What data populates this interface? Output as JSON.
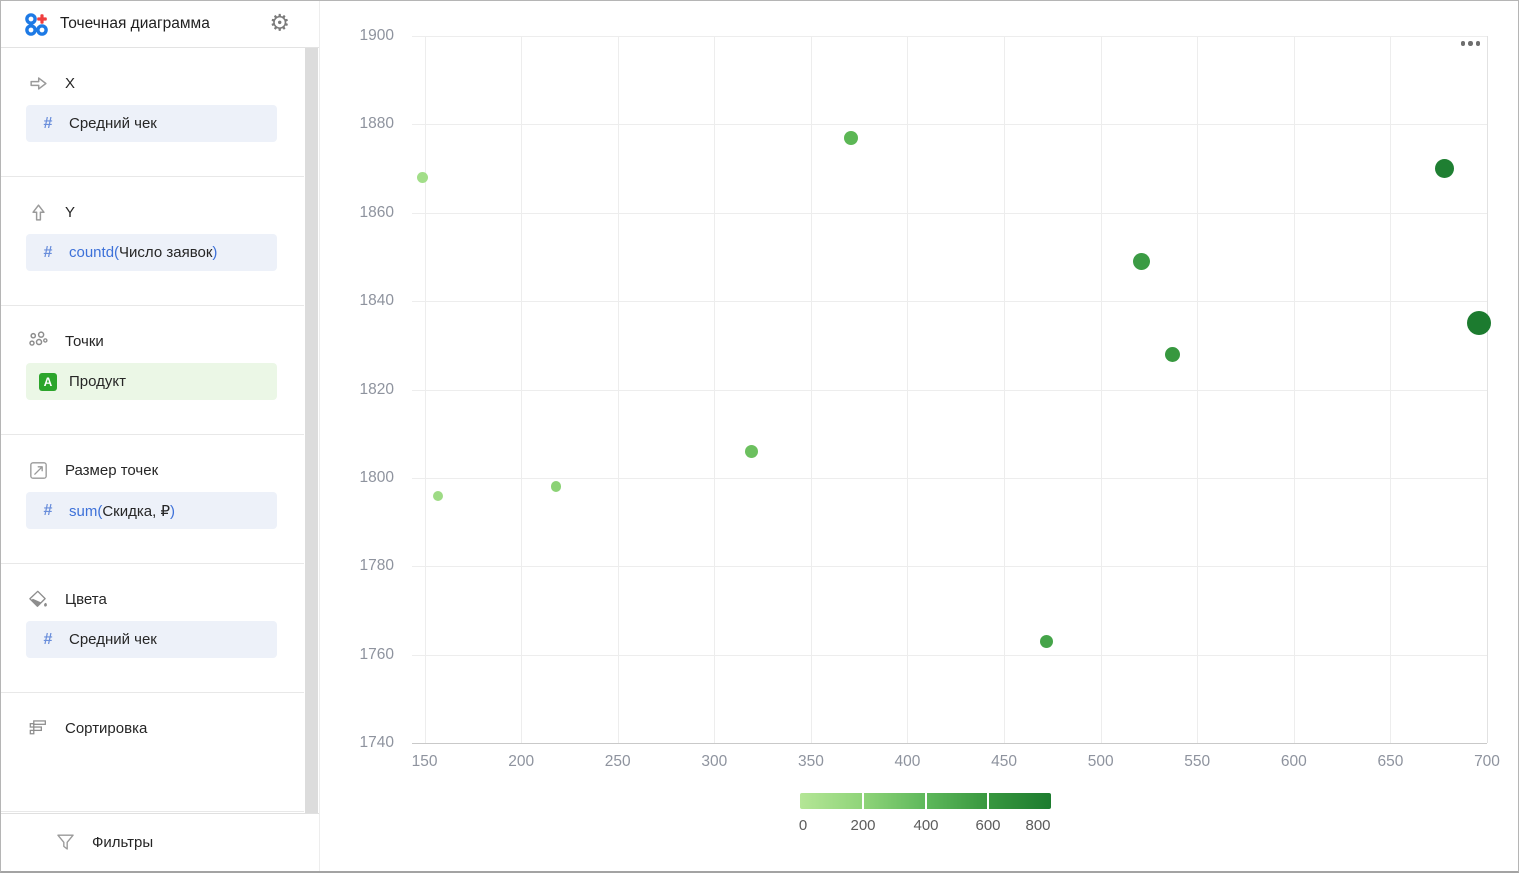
{
  "sidebar": {
    "title": "Точечная диаграмма",
    "gear_icon": "gear-icon",
    "logo_icon": "scatter-chart-logo-icon",
    "sections": [
      {
        "key": "x",
        "label": "X",
        "icon": "arrow-right-icon",
        "field": {
          "style": "blue",
          "icon": "hash-icon",
          "prefix": "",
          "name": "Средний чек",
          "suffix": ""
        }
      },
      {
        "key": "y",
        "label": "Y",
        "icon": "arrow-up-icon",
        "field": {
          "style": "blue",
          "icon": "hash-icon",
          "prefix": "countd(",
          "name": "Число заявок",
          "suffix": ")"
        }
      },
      {
        "key": "points",
        "label": "Точки",
        "icon": "dots-icon",
        "field": {
          "style": "green",
          "icon": "letter-a-icon",
          "prefix": "",
          "name": "Продукт",
          "suffix": ""
        }
      },
      {
        "key": "point-size",
        "label": "Размер точек",
        "icon": "resize-icon",
        "field": {
          "style": "blue",
          "icon": "hash-icon",
          "prefix": "sum(",
          "name": "Скидка, ₽",
          "suffix": ")"
        }
      },
      {
        "key": "colors",
        "label": "Цвета",
        "icon": "paint-bucket-icon",
        "field": {
          "style": "blue",
          "icon": "hash-icon",
          "prefix": "",
          "name": "Средний чек",
          "suffix": ""
        }
      },
      {
        "key": "sorting",
        "label": "Сортировка",
        "icon": "sort-icon",
        "field": null
      },
      {
        "key": "filters",
        "label": "Фильтры",
        "icon": "funnel-icon",
        "field": null,
        "footer": true
      }
    ]
  },
  "chart": {
    "more_menu_icon": "ellipsis-icon"
  },
  "chart_data": {
    "type": "scatter",
    "x_field": "Средний чек",
    "y_field": "countd(Число заявок)",
    "points_field": "Продукт",
    "size_field": "sum(Скидка, ₽)",
    "color_field": "Средний чек",
    "xlim": [
      143.5,
      700
    ],
    "ylim": [
      1740,
      1900
    ],
    "x_ticks": [
      150,
      200,
      250,
      300,
      350,
      400,
      450,
      500,
      550,
      600,
      650,
      700
    ],
    "y_ticks": [
      1740,
      1760,
      1780,
      1800,
      1820,
      1840,
      1860,
      1880,
      1900
    ],
    "grid": true,
    "points": [
      {
        "x": 149,
        "y": 1868,
        "diameter": 11,
        "color": "#a2de89"
      },
      {
        "x": 157,
        "y": 1796,
        "diameter": 10,
        "color": "#9edb85"
      },
      {
        "x": 218,
        "y": 1798,
        "diameter": 10.5,
        "color": "#8bd275"
      },
      {
        "x": 319,
        "y": 1806,
        "diameter": 13,
        "color": "#6cc05f"
      },
      {
        "x": 371,
        "y": 1877,
        "diameter": 14,
        "color": "#5cb755"
      },
      {
        "x": 472,
        "y": 1763,
        "diameter": 13.5,
        "color": "#45a449"
      },
      {
        "x": 521,
        "y": 1849,
        "diameter": 17,
        "color": "#3b9b44"
      },
      {
        "x": 537,
        "y": 1828,
        "diameter": 15,
        "color": "#37983f"
      },
      {
        "x": 678,
        "y": 1870,
        "diameter": 19.5,
        "color": "#1f7f32"
      },
      {
        "x": 696,
        "y": 1835,
        "diameter": 24,
        "color": "#1c7b2f"
      }
    ],
    "legend": {
      "position": "bottom",
      "ticks": [
        0,
        200,
        400,
        600,
        800
      ],
      "gradient": [
        "#b4e696",
        "#8fd479",
        "#5eb85b",
        "#38973f",
        "#1d7c2f"
      ]
    },
    "colors": {
      "accent_blue": "#3d71d9",
      "field_green": "#2ca52c",
      "grid": "#ededed",
      "axis_label": "#8e939e"
    }
  }
}
